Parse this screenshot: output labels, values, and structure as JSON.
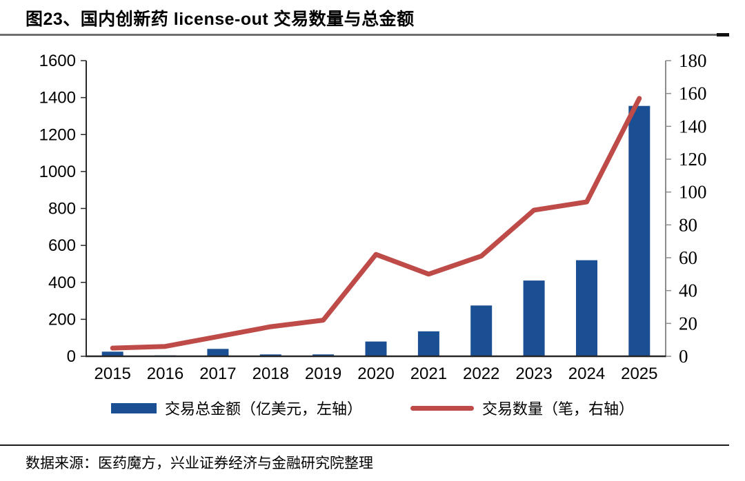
{
  "page": {
    "title": "图23、国内创新药 license-out 交易数量与总金额",
    "source_note": "数据来源：医药魔方，兴业证券经济与金融研究院整理"
  },
  "chart_data": {
    "type": "combo",
    "title": "国内创新药 license-out 交易数量与总金额",
    "categories": [
      "2015",
      "2016",
      "2017",
      "2018",
      "2019",
      "2020",
      "2021",
      "2022",
      "2023",
      "2024",
      "2025"
    ],
    "series": [
      {
        "name": "交易总金额（亿美元，左轴）",
        "type": "bar",
        "axis": "left",
        "color": "#1B4F94",
        "values": [
          25,
          5,
          40,
          10,
          10,
          80,
          135,
          275,
          410,
          520,
          1355
        ]
      },
      {
        "name": "交易数量（笔，右轴）",
        "type": "line",
        "axis": "right",
        "color": "#BE4B48",
        "values": [
          5,
          6,
          12,
          18,
          22,
          62,
          50,
          61,
          89,
          94,
          157
        ]
      }
    ],
    "left_axis": {
      "min": 0,
      "max": 1600,
      "step": 200,
      "tick_labels": [
        "0",
        "200",
        "400",
        "600",
        "800",
        "1000",
        "1200",
        "1400",
        "1600"
      ]
    },
    "right_axis": {
      "min": 0,
      "max": 180,
      "step": 20,
      "tick_labels": [
        "0",
        "20",
        "40",
        "60",
        "80",
        "100",
        "120",
        "140",
        "160",
        "180"
      ]
    },
    "legend": [
      {
        "label": "交易总金额（亿美元，左轴）",
        "swatch": "bar",
        "color": "#1B4F94"
      },
      {
        "label": "交易数量（笔，右轴）",
        "swatch": "line",
        "color": "#BE4B48"
      }
    ],
    "legend_position": "bottom",
    "grid": "off"
  }
}
